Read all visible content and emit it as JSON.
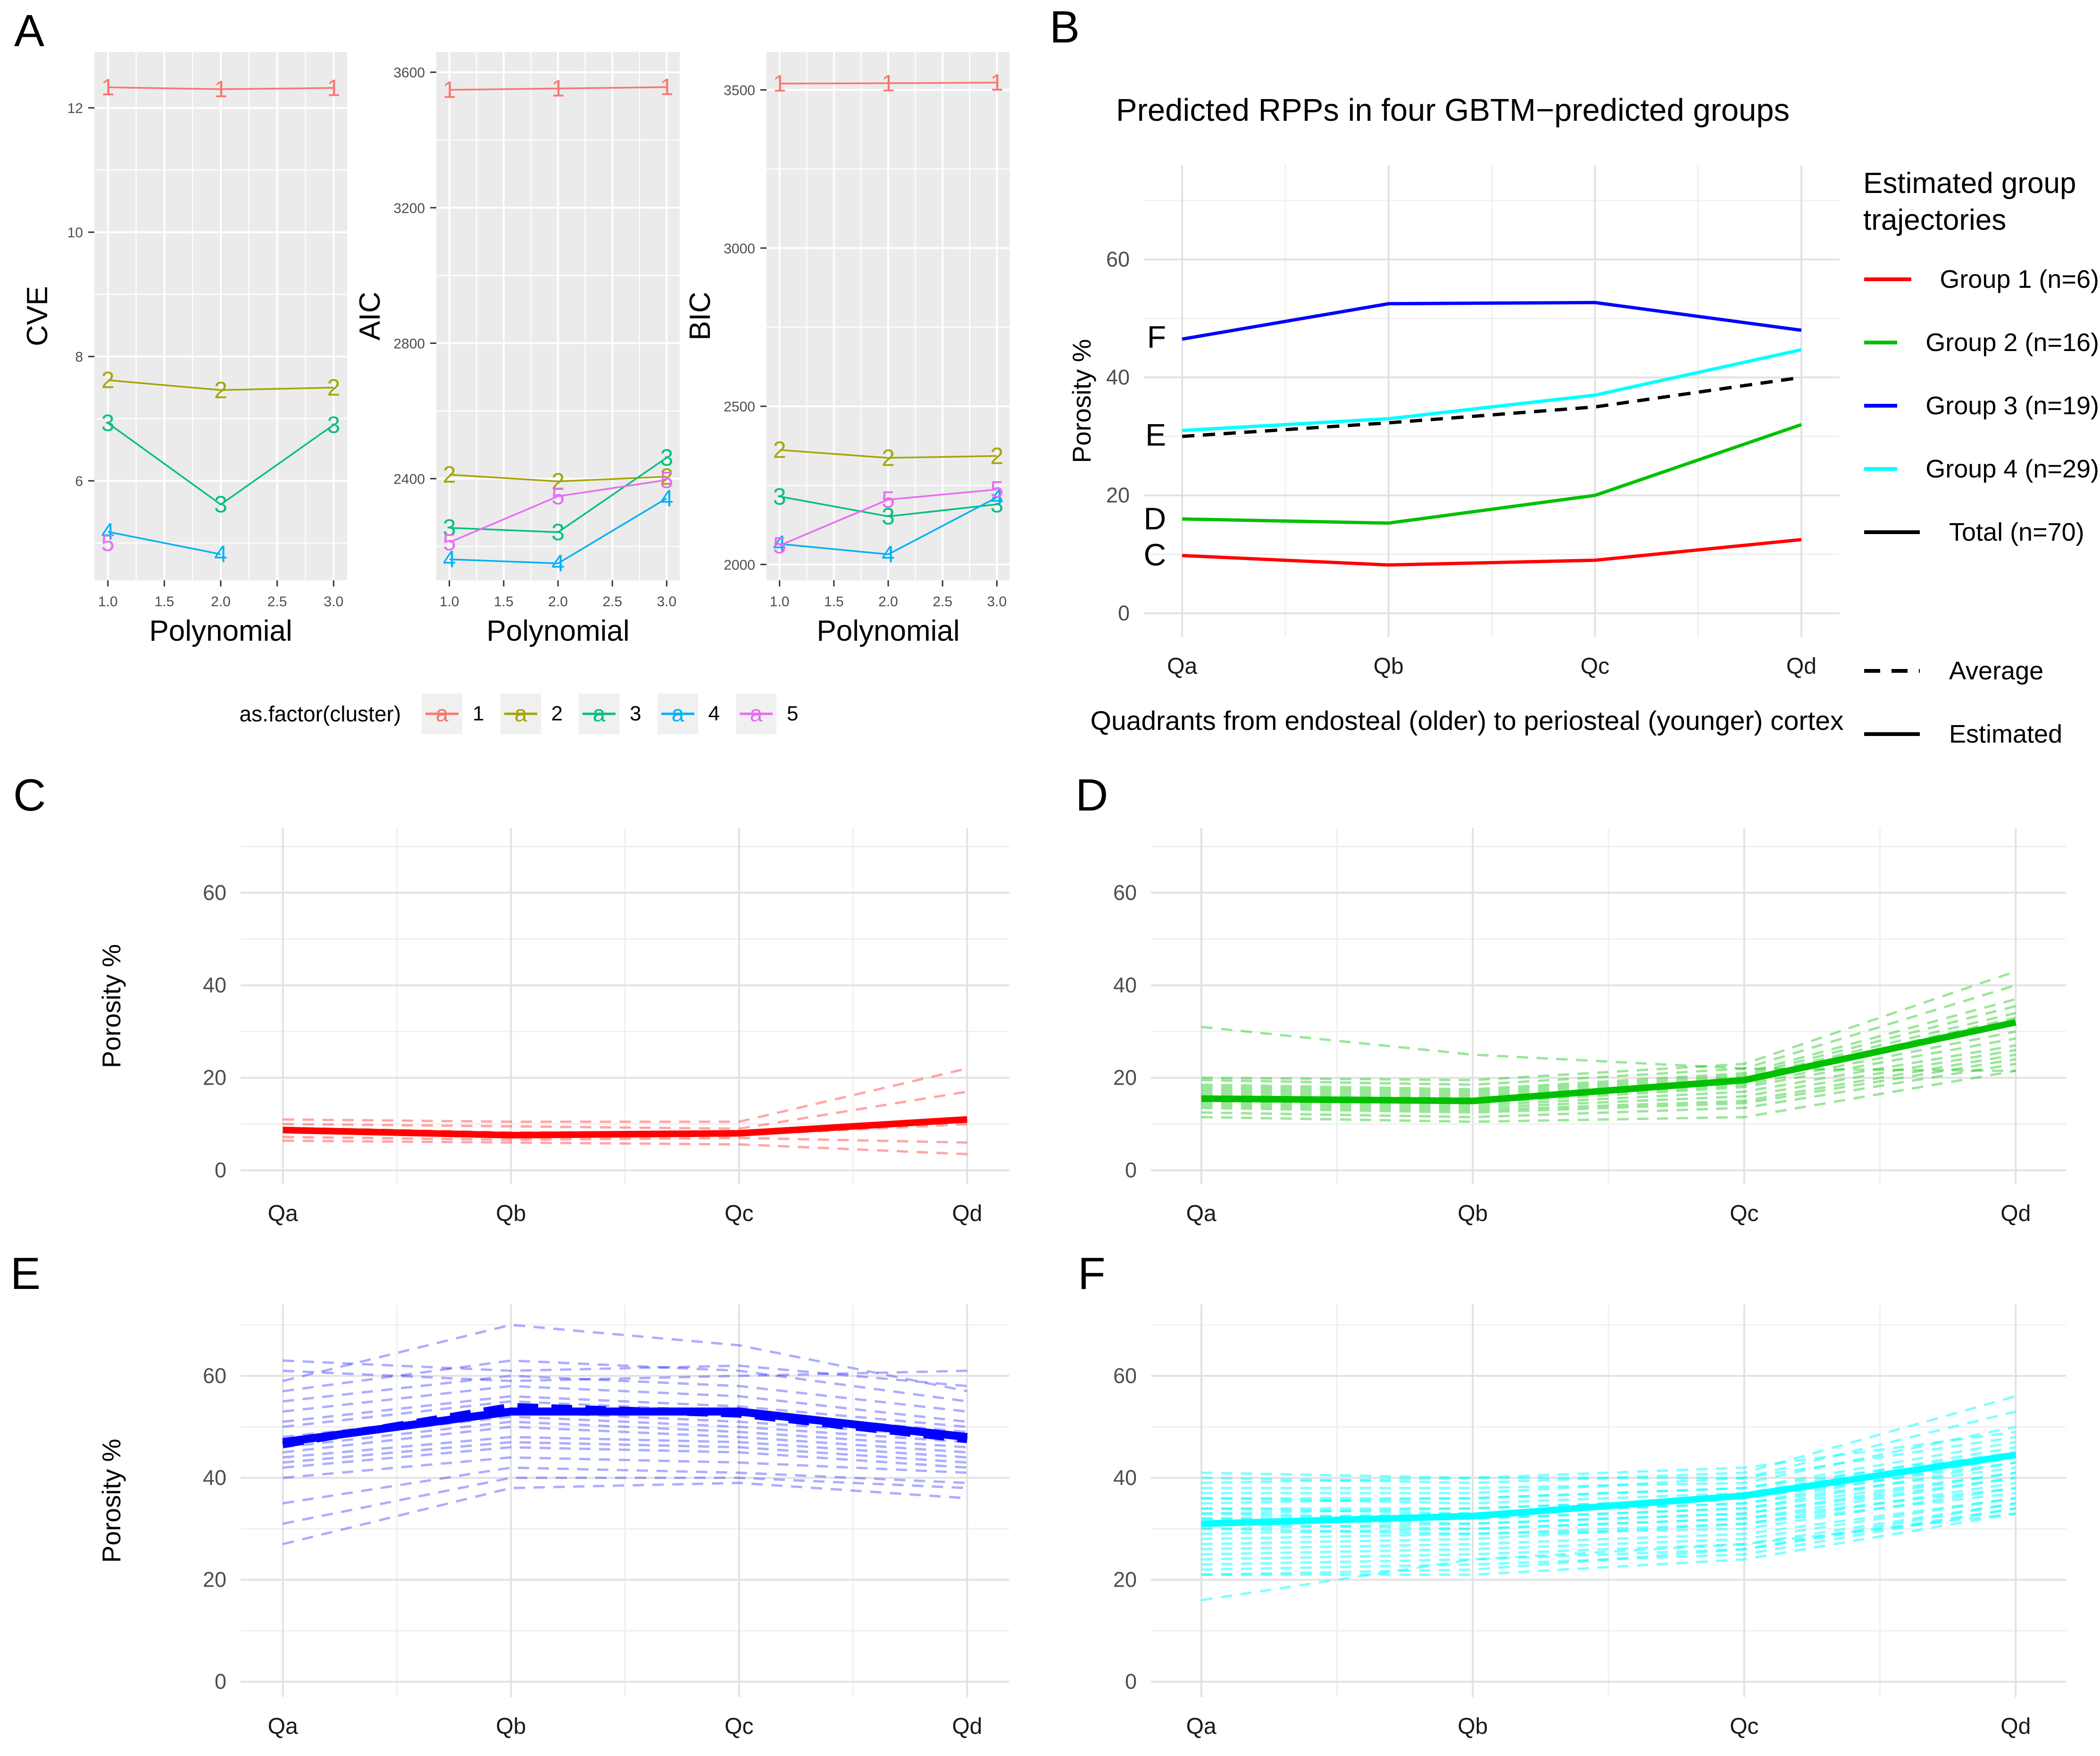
{
  "page": {
    "background": "#FFFFFF"
  },
  "panels": {
    "a": {
      "letter": "A",
      "legend_title": "as.factor(cluster)",
      "clusters": [
        {
          "label": "1",
          "color": "#F8766D"
        },
        {
          "label": "2",
          "color": "#A3A500"
        },
        {
          "label": "3",
          "color": "#00BF7D"
        },
        {
          "label": "4",
          "color": "#00B0F6"
        },
        {
          "label": "5",
          "color": "#E76BF3"
        }
      ]
    },
    "b": {
      "letter": "B",
      "title": "Predicted RPPs in four GBTM−predicted groups",
      "xlabel": "Quadrants from endosteal (older) to periosteal (younger) cortex",
      "ylabel": "Porosity %",
      "legend_title": "Estimated group\ntrajectories"
    },
    "c": {
      "letter": "C",
      "ylabel": "Porosity %"
    },
    "d": {
      "letter": "D"
    },
    "e": {
      "letter": "E",
      "ylabel": "Porosity %"
    },
    "f": {
      "letter": "F"
    }
  },
  "chart_data": [
    {
      "id": "a_cve",
      "type": "line",
      "panel": "A",
      "ylabel": "CVE",
      "xlabel": "Polynomial",
      "x": [
        1,
        2,
        3
      ],
      "xtick_values": [
        1,
        1.5,
        2,
        2.5,
        3
      ],
      "xtick_labels": [
        "1.0",
        "1.5",
        "2.0",
        "2.5",
        "3.0"
      ],
      "xminor": [
        1.25,
        1.75,
        2.25,
        2.75
      ],
      "ylim": [
        4.4,
        12.9
      ],
      "ytick_values": [
        6,
        8,
        10,
        12
      ],
      "ytick_labels": [
        "6",
        "8",
        "10",
        "12"
      ],
      "yminor": [
        5,
        7,
        9,
        11
      ],
      "series": [
        {
          "name": "1",
          "color": "#F8766D",
          "values": [
            12.33,
            12.3,
            12.32
          ]
        },
        {
          "name": "2",
          "color": "#A3A500",
          "values": [
            7.62,
            7.46,
            7.5
          ]
        },
        {
          "name": "3",
          "color": "#00BF7D",
          "values": [
            6.93,
            5.62,
            6.9
          ]
        },
        {
          "name": "4",
          "color": "#00B0F6",
          "values": [
            5.18,
            4.82,
            null
          ]
        },
        {
          "name": "5",
          "color": "#E76BF3",
          "values": [
            5.0,
            null,
            null
          ]
        }
      ]
    },
    {
      "id": "a_aic",
      "type": "line",
      "panel": "A",
      "ylabel": "AIC",
      "xlabel": "Polynomial",
      "x": [
        1,
        2,
        3
      ],
      "xtick_values": [
        1,
        1.5,
        2,
        2.5,
        3
      ],
      "xtick_labels": [
        "1.0",
        "1.5",
        "2.0",
        "2.5",
        "3.0"
      ],
      "xminor": [
        1.25,
        1.75,
        2.25,
        2.75
      ],
      "ylim": [
        2100,
        3660
      ],
      "ytick_values": [
        2400,
        2800,
        3200,
        3600
      ],
      "ytick_labels": [
        "2400",
        "2800",
        "3200",
        "3600"
      ],
      "yminor": [
        2200,
        2600,
        3000,
        3400
      ],
      "series": [
        {
          "name": "1",
          "color": "#F8766D",
          "values": [
            3548,
            3552,
            3556
          ]
        },
        {
          "name": "2",
          "color": "#A3A500",
          "values": [
            2412,
            2392,
            2406
          ]
        },
        {
          "name": "3",
          "color": "#00BF7D",
          "values": [
            2255,
            2242,
            2462
          ]
        },
        {
          "name": "4",
          "color": "#00B0F6",
          "values": [
            2162,
            2150,
            2342
          ]
        },
        {
          "name": "5",
          "color": "#E76BF3",
          "values": [
            2212,
            2348,
            2396
          ]
        }
      ]
    },
    {
      "id": "a_bic",
      "type": "line",
      "panel": "A",
      "ylabel": "BIC",
      "xlabel": "Polynomial",
      "x": [
        1,
        2,
        3
      ],
      "xtick_values": [
        1,
        1.5,
        2,
        2.5,
        3
      ],
      "xtick_labels": [
        "1.0",
        "1.5",
        "2.0",
        "2.5",
        "3.0"
      ],
      "xminor": [
        1.25,
        1.75,
        2.25,
        2.75
      ],
      "ylim": [
        1950,
        3620
      ],
      "ytick_values": [
        2000,
        2500,
        3000,
        3500
      ],
      "ytick_labels": [
        "2000",
        "2500",
        "3000",
        "3500"
      ],
      "yminor": [
        2250,
        2750,
        3250
      ],
      "series": [
        {
          "name": "1",
          "color": "#F8766D",
          "values": [
            3520,
            3521,
            3523
          ]
        },
        {
          "name": "2",
          "color": "#A3A500",
          "values": [
            2362,
            2337,
            2343
          ]
        },
        {
          "name": "3",
          "color": "#00BF7D",
          "values": [
            2215,
            2152,
            2190
          ]
        },
        {
          "name": "4",
          "color": "#00B0F6",
          "values": [
            2065,
            2032,
            2212
          ]
        },
        {
          "name": "5",
          "color": "#E76BF3",
          "values": [
            2060,
            2205,
            2237
          ]
        }
      ]
    },
    {
      "id": "b",
      "type": "line",
      "title": "Predicted RPPs in four GBTM−predicted groups",
      "xlabel": "Quadrants from endosteal (older) to periosteal (younger) cortex",
      "ylabel": "Porosity %",
      "categories": [
        "Qa",
        "Qb",
        "Qc",
        "Qd"
      ],
      "ylim": [
        -4,
        76
      ],
      "yticks": [
        0,
        20,
        40,
        60
      ],
      "yminor": [
        10,
        30,
        50,
        70
      ],
      "legend_position": "right",
      "series": [
        {
          "name": "Group 1 (n=6)",
          "color": "#FF0000",
          "linetype": "solid",
          "values": [
            9.8,
            8.2,
            9.0,
            12.5
          ]
        },
        {
          "name": "Group 2 (n=16)",
          "color": "#00C000",
          "linetype": "solid",
          "values": [
            16.0,
            15.3,
            20.0,
            32.0
          ]
        },
        {
          "name": "Group 3 (n=19)",
          "color": "#0000FF",
          "linetype": "solid",
          "values": [
            46.5,
            52.5,
            52.7,
            48.0
          ]
        },
        {
          "name": "Group 4 (n=29)",
          "color": "#00FFFF",
          "linetype": "solid",
          "values": [
            31.0,
            33.0,
            37.0,
            44.7
          ]
        },
        {
          "name": "Total (n=70)",
          "color": "#000000",
          "linetype": "dashed",
          "values": [
            30.0,
            32.3,
            35.0,
            40.0
          ]
        }
      ],
      "letters": [
        {
          "text": "C",
          "y": 9.9
        },
        {
          "text": "D",
          "y": 16.0
        },
        {
          "text": "E",
          "y": 30.2
        },
        {
          "text": "F",
          "y": 46.8
        }
      ],
      "linetype_legend": [
        {
          "label": "Average",
          "linetype": "dashed"
        },
        {
          "label": "Estimated",
          "linetype": "solid"
        }
      ]
    },
    {
      "id": "c",
      "type": "line",
      "group": "Group 1",
      "ylabel": "Porosity %",
      "categories": [
        "Qa",
        "Qb",
        "Qc",
        "Qd"
      ],
      "ylim": [
        -3,
        74
      ],
      "yticks": [
        0,
        20,
        40,
        60
      ],
      "yminor": [
        10,
        30,
        50,
        70
      ],
      "mean_color": "#FF0000",
      "mean": [
        8.7,
        7.6,
        8.0,
        11.0
      ],
      "individual_lines": [
        [
          11,
          10.5,
          10.5,
          22
        ],
        [
          10,
          9.5,
          9,
          17
        ],
        [
          9.2,
          8.2,
          8.2,
          10.8
        ],
        [
          8.3,
          7.4,
          7.6,
          10
        ],
        [
          7.2,
          6.6,
          7,
          6
        ],
        [
          6.4,
          6,
          5.6,
          3.5
        ]
      ]
    },
    {
      "id": "d",
      "type": "line",
      "group": "Group 2",
      "categories": [
        "Qa",
        "Qb",
        "Qc",
        "Qd"
      ],
      "ylim": [
        -3,
        74
      ],
      "yticks": [
        0,
        20,
        40,
        60
      ],
      "yminor": [
        10,
        30,
        50,
        70
      ],
      "mean_color": "#00C000",
      "mean": [
        15.5,
        15.0,
        19.5,
        32.0
      ],
      "individual_lines": [
        [
          31,
          25,
          22,
          21.5
        ],
        [
          20,
          19.5,
          23,
          43
        ],
        [
          19.5,
          18.5,
          22,
          40
        ],
        [
          18.5,
          17.5,
          21,
          37
        ],
        [
          18,
          17,
          20.5,
          35.5
        ],
        [
          17.5,
          16.5,
          20,
          34
        ],
        [
          17,
          16,
          19.5,
          33
        ],
        [
          16.5,
          15.5,
          19,
          32
        ],
        [
          16,
          15,
          18.5,
          30
        ],
        [
          15.5,
          14.5,
          18,
          28.5
        ],
        [
          15,
          14,
          17,
          27
        ],
        [
          14.5,
          13.5,
          16,
          26
        ],
        [
          14,
          13,
          15,
          25
        ],
        [
          13.5,
          12.5,
          14.5,
          24
        ],
        [
          12.5,
          11.5,
          13.5,
          23
        ],
        [
          11.5,
          10.5,
          11.5,
          21.5
        ]
      ]
    },
    {
      "id": "e",
      "type": "line",
      "group": "Group 3",
      "ylabel": "Porosity %",
      "categories": [
        "Qa",
        "Qb",
        "Qc",
        "Qd"
      ],
      "ylim": [
        -3,
        74
      ],
      "yticks": [
        0,
        20,
        40,
        60
      ],
      "yminor": [
        10,
        30,
        50,
        70
      ],
      "mean_color": "#0000FF",
      "estimated": [
        47.0,
        53.0,
        53.0,
        48.0
      ],
      "average": [
        46.5,
        54.0,
        52.5,
        47.5
      ],
      "individual_lines": [
        [
          63,
          61,
          62,
          58
        ],
        [
          61,
          59,
          60,
          61
        ],
        [
          59,
          70,
          66,
          57
        ],
        [
          57,
          63,
          61,
          55
        ],
        [
          55,
          60,
          58,
          53
        ],
        [
          53,
          58,
          56,
          51
        ],
        [
          51,
          56,
          54,
          50
        ],
        [
          50,
          55,
          53,
          49
        ],
        [
          48,
          53,
          51,
          48
        ],
        [
          47,
          52,
          50,
          47
        ],
        [
          46,
          51,
          49,
          46
        ],
        [
          45,
          50,
          48,
          45
        ],
        [
          44,
          48,
          47,
          44
        ],
        [
          43,
          47,
          46,
          43
        ],
        [
          42,
          46,
          45,
          42
        ],
        [
          40,
          44,
          43,
          41
        ],
        [
          35,
          42,
          41,
          39
        ],
        [
          31,
          40,
          40,
          38
        ],
        [
          27,
          38,
          39,
          36
        ]
      ]
    },
    {
      "id": "f",
      "type": "line",
      "group": "Group 4",
      "categories": [
        "Qa",
        "Qb",
        "Qc",
        "Qd"
      ],
      "ylim": [
        -3,
        74
      ],
      "yticks": [
        0,
        20,
        40,
        60
      ],
      "yminor": [
        10,
        30,
        50,
        70
      ],
      "mean_color": "#00FFFF",
      "mean": [
        31.0,
        32.5,
        36.5,
        44.5
      ],
      "individual_lines": [
        [
          41,
          40,
          42,
          49
        ],
        [
          40,
          39,
          41,
          56
        ],
        [
          39,
          40,
          40,
          53
        ],
        [
          38,
          38,
          39,
          50
        ],
        [
          37,
          37,
          40,
          48
        ],
        [
          36,
          36,
          38,
          47
        ],
        [
          36,
          35,
          37,
          46
        ],
        [
          35,
          36,
          38,
          45
        ],
        [
          34,
          34,
          36,
          45
        ],
        [
          34,
          33,
          35,
          44
        ],
        [
          33,
          34,
          36,
          43
        ],
        [
          33,
          32,
          34,
          43
        ],
        [
          32,
          33,
          35,
          42
        ],
        [
          32,
          31,
          33,
          41
        ],
        [
          31,
          32,
          34,
          41
        ],
        [
          31,
          30,
          32,
          40
        ],
        [
          30,
          31,
          33,
          40
        ],
        [
          30,
          29,
          31,
          39
        ],
        [
          29,
          30,
          32,
          38
        ],
        [
          28,
          29,
          30,
          38
        ],
        [
          27,
          28,
          31,
          37
        ],
        [
          26,
          27,
          29,
          36
        ],
        [
          25,
          26,
          28,
          36
        ],
        [
          24,
          25,
          27,
          35
        ],
        [
          23,
          24,
          26,
          35
        ],
        [
          22,
          23,
          25,
          34
        ],
        [
          21,
          22,
          26,
          34
        ],
        [
          21,
          21,
          24,
          33
        ],
        [
          16,
          24,
          27,
          33
        ]
      ]
    }
  ]
}
